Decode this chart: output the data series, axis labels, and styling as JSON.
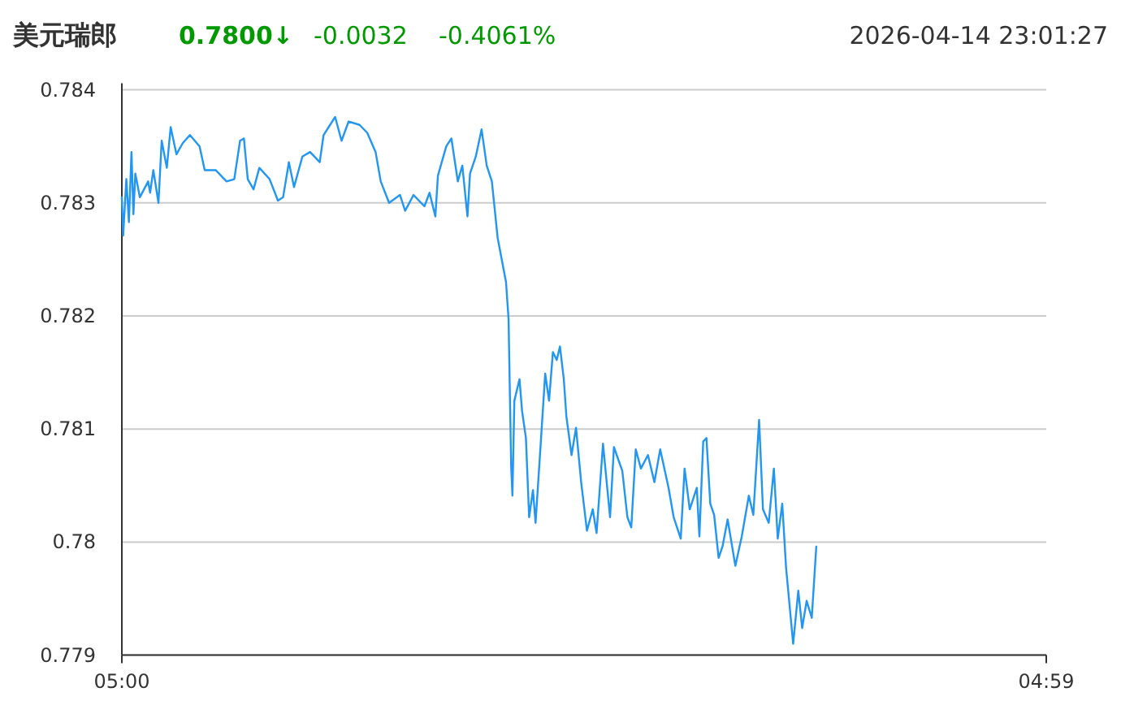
{
  "chart_data": {
    "type": "line",
    "title": "美元瑞郎",
    "subtitle": "0.7800↓",
    "annotations": [
      "-0.0032",
      "-0.4061%",
      "2026-04-14 23:01:27"
    ],
    "xlim": [
      "2026-04-14T05:00",
      "2026-04-15T04:59"
    ],
    "xticks": [
      {
        "value": "2026-04-14T05:00",
        "label": "05:00"
      },
      {
        "value": "2026-04-15T04:59",
        "label": "04:59"
      }
    ],
    "ylim": [
      0.779,
      0.784
    ],
    "yticks": [
      0.779,
      0.78,
      0.781,
      0.782,
      0.783,
      0.784
    ],
    "grid": "y",
    "marker": "none",
    "line_style": "solid",
    "series": [
      {
        "color": "#2196f3",
        "x": [
          "2026-04-14T05:00",
          "2026-04-14T05:02",
          "2026-04-14T05:07",
          "2026-04-14T05:11",
          "2026-04-14T05:15",
          "2026-04-14T05:18",
          "2026-04-14T05:21",
          "2026-04-14T05:28",
          "2026-04-14T05:41",
          "2026-04-14T05:44",
          "2026-04-14T05:49",
          "2026-04-14T05:57",
          "2026-04-14T06:02",
          "2026-04-14T06:10",
          "2026-04-14T06:16",
          "2026-04-14T06:25",
          "2026-04-14T06:35",
          "2026-04-14T06:46",
          "2026-04-14T07:01",
          "2026-04-14T07:09",
          "2026-04-14T07:26",
          "2026-04-14T07:43",
          "2026-04-14T07:55",
          "2026-04-14T08:04",
          "2026-04-14T08:10",
          "2026-04-14T08:16",
          "2026-04-14T08:25",
          "2026-04-14T08:34",
          "2026-04-14T08:50",
          "2026-04-14T09:03",
          "2026-04-14T09:11",
          "2026-04-14T09:20",
          "2026-04-14T09:28",
          "2026-04-14T09:41",
          "2026-04-14T09:53",
          "2026-04-14T10:08",
          "2026-04-14T10:14",
          "2026-04-14T10:32",
          "2026-04-14T10:42",
          "2026-04-14T10:53",
          "2026-04-14T11:10",
          "2026-04-14T11:22",
          "2026-04-14T11:35",
          "2026-04-14T11:43",
          "2026-04-14T11:56",
          "2026-04-14T12:13",
          "2026-04-14T12:21",
          "2026-04-14T12:34",
          "2026-04-14T12:51",
          "2026-04-14T12:59",
          "2026-04-14T13:08",
          "2026-04-14T13:12",
          "2026-04-14T13:25",
          "2026-04-14T13:33",
          "2026-04-14T13:43",
          "2026-04-14T13:50",
          "2026-04-14T13:58",
          "2026-04-14T14:02",
          "2026-04-14T14:11",
          "2026-04-14T14:20",
          "2026-04-14T14:28",
          "2026-04-14T14:36",
          "2026-04-14T14:45",
          "2026-04-14T14:58",
          "2026-04-14T15:02",
          "2026-04-14T15:06",
          "2026-04-14T15:08",
          "2026-04-14T15:11",
          "2026-04-14T15:19",
          "2026-04-14T15:23",
          "2026-04-14T15:29",
          "2026-04-14T15:34",
          "2026-04-14T15:40",
          "2026-04-14T15:44",
          "2026-04-14T15:52",
          "2026-04-14T15:59",
          "2026-04-14T16:05",
          "2026-04-14T16:11",
          "2026-04-14T16:17",
          "2026-04-14T16:22",
          "2026-04-14T16:28",
          "2026-04-14T16:32",
          "2026-04-14T16:40",
          "2026-04-14T16:47",
          "2026-04-14T16:55",
          "2026-04-14T17:04",
          "2026-04-14T17:13",
          "2026-04-14T17:19",
          "2026-04-14T17:29",
          "2026-04-14T17:40",
          "2026-04-14T17:46",
          "2026-04-14T17:59",
          "2026-04-14T18:07",
          "2026-04-14T18:13",
          "2026-04-14T18:20",
          "2026-04-14T18:28",
          "2026-04-14T18:39",
          "2026-04-14T18:49",
          "2026-04-14T18:58",
          "2026-04-14T19:11",
          "2026-04-14T19:19",
          "2026-04-14T19:30",
          "2026-04-14T19:36",
          "2026-04-14T19:44",
          "2026-04-14T19:55",
          "2026-04-14T19:59",
          "2026-04-14T20:05",
          "2026-04-14T20:10",
          "2026-04-14T20:16",
          "2026-04-14T20:22",
          "2026-04-14T20:29",
          "2026-04-14T20:35",
          "2026-04-14T20:43",
          "2026-04-14T20:55",
          "2026-04-14T21:05",
          "2026-04-14T21:16",
          "2026-04-14T21:23",
          "2026-04-14T21:32",
          "2026-04-14T21:38",
          "2026-04-14T21:47",
          "2026-04-14T21:55",
          "2026-04-14T22:01",
          "2026-04-14T22:08",
          "2026-04-14T22:14",
          "2026-04-14T22:25",
          "2026-04-14T22:33",
          "2026-04-14T22:39",
          "2026-04-14T22:46",
          "2026-04-14T22:54",
          "2026-04-14T23:01"
        ],
        "values": [
          0.78305,
          0.78271,
          0.78321,
          0.78283,
          0.78345,
          0.7829,
          0.78326,
          0.78305,
          0.78319,
          0.78309,
          0.78329,
          0.783,
          0.78355,
          0.78331,
          0.78367,
          0.78343,
          0.78353,
          0.7836,
          0.7835,
          0.78329,
          0.78329,
          0.78319,
          0.78321,
          0.78355,
          0.78357,
          0.78321,
          0.78312,
          0.78331,
          0.78321,
          0.78302,
          0.78305,
          0.78336,
          0.78314,
          0.78341,
          0.78345,
          0.78336,
          0.7836,
          0.78376,
          0.78355,
          0.78372,
          0.78369,
          0.78362,
          0.78345,
          0.78319,
          0.783,
          0.78307,
          0.78293,
          0.78307,
          0.78297,
          0.78309,
          0.78288,
          0.78324,
          0.7835,
          0.78357,
          0.78319,
          0.78333,
          0.78288,
          0.78326,
          0.78341,
          0.78365,
          0.78333,
          0.78319,
          0.78269,
          0.7823,
          0.78197,
          0.78068,
          0.78041,
          0.78125,
          0.78144,
          0.78116,
          0.78092,
          0.78022,
          0.78046,
          0.78017,
          0.78087,
          0.78149,
          0.78125,
          0.78168,
          0.78161,
          0.78173,
          0.78144,
          0.78111,
          0.78077,
          0.78101,
          0.78053,
          0.7801,
          0.78029,
          0.78008,
          0.78087,
          0.78022,
          0.78084,
          0.78063,
          0.78022,
          0.78013,
          0.78082,
          0.78065,
          0.78077,
          0.78053,
          0.78082,
          0.78048,
          0.78022,
          0.78003,
          0.78065,
          0.78029,
          0.78048,
          0.78005,
          0.78089,
          0.78092,
          0.78034,
          0.78024,
          0.77986,
          0.77996,
          0.7802,
          0.77979,
          0.78005,
          0.78041,
          0.78024,
          0.78108,
          0.78029,
          0.78017,
          0.78065,
          0.78003,
          0.78034,
          0.77977,
          0.7791,
          0.77957,
          0.77924,
          0.77948,
          0.77933,
          0.77996
        ]
      }
    ]
  }
}
